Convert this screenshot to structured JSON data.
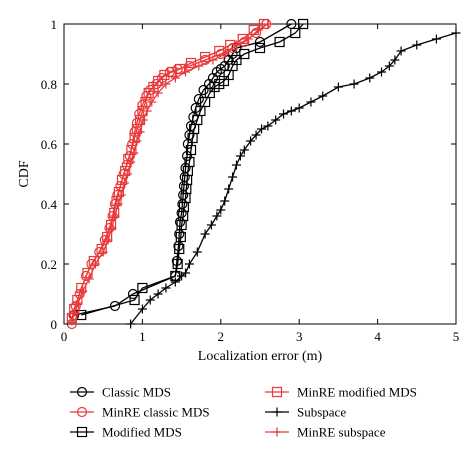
{
  "chart_data": {
    "type": "line",
    "title": "",
    "xlabel": "Localization error (m)",
    "ylabel": "CDF",
    "xlim": [
      0,
      5
    ],
    "ylim": [
      0,
      1
    ],
    "xticks": [
      "0",
      "1",
      "2",
      "3",
      "4",
      "5"
    ],
    "yticks": [
      "0",
      "0.2",
      "0.4",
      "0.6",
      "0.8",
      "1"
    ],
    "grid": false,
    "legend_position": "bottom",
    "series": [
      {
        "name": "Classic MDS",
        "color": "#000000",
        "marker": "circle",
        "x": [
          0.13,
          0.65,
          0.88,
          1.42,
          1.44,
          1.46,
          1.47,
          1.48,
          1.5,
          1.51,
          1.52,
          1.53,
          1.54,
          1.55,
          1.57,
          1.58,
          1.6,
          1.62,
          1.65,
          1.68,
          1.72,
          1.78,
          1.85,
          1.9,
          1.95,
          2.0,
          2.05,
          2.1,
          2.15,
          2.2,
          2.5,
          2.9
        ],
        "y": [
          0.03,
          0.06,
          0.1,
          0.16,
          0.21,
          0.26,
          0.3,
          0.34,
          0.37,
          0.4,
          0.43,
          0.46,
          0.49,
          0.52,
          0.56,
          0.6,
          0.63,
          0.66,
          0.69,
          0.72,
          0.75,
          0.78,
          0.8,
          0.82,
          0.84,
          0.85,
          0.86,
          0.88,
          0.9,
          0.92,
          0.94,
          1.0
        ]
      },
      {
        "name": "MinRE classic MDS",
        "color": "#e8393a",
        "marker": "circle",
        "x": [
          0.1,
          0.12,
          0.15,
          0.2,
          0.28,
          0.35,
          0.45,
          0.52,
          0.58,
          0.62,
          0.65,
          0.68,
          0.72,
          0.76,
          0.8,
          0.84,
          0.87,
          0.9,
          0.93,
          0.96,
          1.0,
          1.05,
          1.1,
          1.18,
          1.25,
          1.35,
          1.45,
          1.6,
          1.8,
          2.0,
          2.15,
          2.3,
          2.45,
          2.58
        ],
        "y": [
          0.0,
          0.03,
          0.06,
          0.1,
          0.16,
          0.2,
          0.24,
          0.28,
          0.32,
          0.36,
          0.4,
          0.43,
          0.46,
          0.5,
          0.53,
          0.56,
          0.6,
          0.64,
          0.67,
          0.7,
          0.73,
          0.76,
          0.78,
          0.8,
          0.82,
          0.84,
          0.85,
          0.86,
          0.88,
          0.9,
          0.92,
          0.94,
          0.97,
          1.0
        ]
      },
      {
        "name": "Modified MDS",
        "color": "#000000",
        "marker": "square",
        "x": [
          0.22,
          0.9,
          1.0,
          1.42,
          1.45,
          1.47,
          1.49,
          1.5,
          1.52,
          1.53,
          1.55,
          1.56,
          1.57,
          1.58,
          1.6,
          1.62,
          1.64,
          1.66,
          1.7,
          1.74,
          1.8,
          1.86,
          1.92,
          1.98,
          2.04,
          2.1,
          2.15,
          2.2,
          2.3,
          2.5,
          2.75,
          2.95,
          3.05
        ],
        "y": [
          0.03,
          0.08,
          0.12,
          0.16,
          0.2,
          0.25,
          0.29,
          0.33,
          0.36,
          0.39,
          0.42,
          0.45,
          0.48,
          0.51,
          0.54,
          0.58,
          0.62,
          0.65,
          0.68,
          0.71,
          0.74,
          0.77,
          0.79,
          0.8,
          0.81,
          0.83,
          0.86,
          0.88,
          0.9,
          0.92,
          0.94,
          0.97,
          1.0
        ]
      },
      {
        "name": "MinRE modified MDS",
        "color": "#e8393a",
        "marker": "square",
        "x": [
          0.1,
          0.13,
          0.17,
          0.22,
          0.3,
          0.38,
          0.48,
          0.55,
          0.6,
          0.64,
          0.67,
          0.7,
          0.74,
          0.78,
          0.82,
          0.86,
          0.9,
          0.93,
          0.97,
          1.0,
          1.04,
          1.08,
          1.14,
          1.2,
          1.28,
          1.38,
          1.48,
          1.62,
          1.8,
          1.98,
          2.12,
          2.28,
          2.42,
          2.55
        ],
        "y": [
          0.02,
          0.05,
          0.08,
          0.12,
          0.17,
          0.21,
          0.25,
          0.29,
          0.33,
          0.37,
          0.41,
          0.44,
          0.48,
          0.51,
          0.55,
          0.58,
          0.62,
          0.65,
          0.68,
          0.71,
          0.74,
          0.77,
          0.79,
          0.81,
          0.83,
          0.84,
          0.85,
          0.87,
          0.89,
          0.91,
          0.93,
          0.95,
          0.98,
          1.0
        ]
      },
      {
        "name": "Subspace",
        "color": "#000000",
        "marker": "plus",
        "x": [
          0.85,
          1.0,
          1.1,
          1.2,
          1.3,
          1.42,
          1.5,
          1.55,
          1.6,
          1.7,
          1.8,
          1.88,
          1.95,
          2.0,
          2.05,
          2.1,
          2.15,
          2.2,
          2.25,
          2.3,
          2.38,
          2.45,
          2.52,
          2.6,
          2.7,
          2.8,
          2.9,
          3.0,
          3.15,
          3.3,
          3.5,
          3.7,
          3.9,
          4.05,
          4.15,
          4.22,
          4.3,
          4.5,
          4.75,
          5.0
        ],
        "y": [
          0.0,
          0.05,
          0.08,
          0.1,
          0.12,
          0.14,
          0.16,
          0.17,
          0.2,
          0.24,
          0.3,
          0.33,
          0.36,
          0.38,
          0.41,
          0.45,
          0.49,
          0.53,
          0.56,
          0.58,
          0.61,
          0.63,
          0.65,
          0.66,
          0.68,
          0.7,
          0.71,
          0.72,
          0.74,
          0.76,
          0.79,
          0.8,
          0.82,
          0.84,
          0.86,
          0.88,
          0.91,
          0.93,
          0.95,
          0.97
        ]
      },
      {
        "name": "MinRE subspace",
        "color": "#e8393a",
        "marker": "plus",
        "x": [
          0.1,
          0.14,
          0.18,
          0.24,
          0.32,
          0.4,
          0.5,
          0.56,
          0.61,
          0.65,
          0.69,
          0.73,
          0.77,
          0.81,
          0.85,
          0.89,
          0.93,
          0.97,
          1.01,
          1.06,
          1.12,
          1.2,
          1.3,
          1.42,
          1.55,
          1.72,
          1.9,
          2.06,
          2.2,
          2.35,
          2.48,
          2.6
        ],
        "y": [
          0.01,
          0.04,
          0.07,
          0.11,
          0.15,
          0.2,
          0.24,
          0.28,
          0.32,
          0.36,
          0.4,
          0.43,
          0.47,
          0.5,
          0.54,
          0.57,
          0.61,
          0.64,
          0.68,
          0.71,
          0.74,
          0.77,
          0.8,
          0.82,
          0.84,
          0.86,
          0.88,
          0.9,
          0.93,
          0.95,
          0.98,
          1.0
        ]
      }
    ]
  }
}
